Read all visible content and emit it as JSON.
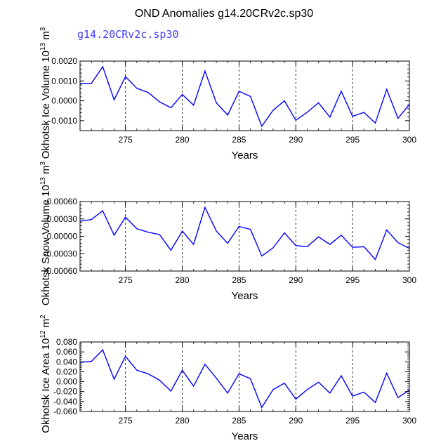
{
  "title": "OND Anomalies g14.20CRv2c.sp30",
  "subtitle": "g14.20CRv2c.sp30",
  "chart_data": [
    {
      "type": "line",
      "xlabel": "Years",
      "ylabel": "Okhotsk Ice Volume 10",
      "ylabel_exp": "13",
      "ylabel_unit": "m",
      "ylabel_unit_exp": "3",
      "xlim": [
        271,
        300
      ],
      "ylim": [
        -0.0015,
        0.002
      ],
      "xticks": [
        275,
        280,
        285,
        290,
        295,
        300
      ],
      "xtick_labels": [
        "275",
        "280",
        "285",
        "290",
        "295",
        "300"
      ],
      "yticks": [
        -0.001,
        0.0,
        0.001,
        0.002
      ],
      "ytick_labels": [
        "-0.0010",
        "0.0000",
        "0.0010",
        "0.0020"
      ],
      "grid": "vertical dashed at x ticks",
      "color": "#0000ff",
      "x": [
        271,
        272,
        273,
        274,
        275,
        276,
        277,
        278,
        279,
        280,
        281,
        282,
        283,
        284,
        285,
        286,
        287,
        288,
        289,
        290,
        291,
        292,
        293,
        294,
        295,
        296,
        297,
        298,
        299,
        300
      ],
      "y": [
        0.00088,
        0.00088,
        0.00172,
        5e-05,
        0.00122,
        0.00063,
        0.00042,
        -5e-05,
        -0.00035,
        0.00032,
        -0.00022,
        0.0015,
        -0.0001,
        -0.00072,
        0.00048,
        0.00022,
        -0.00128,
        -0.00048,
        0.0,
        -0.00098,
        -0.00058,
        -0.0001,
        -0.00082,
        0.00048,
        -0.00078,
        -0.00058,
        -0.00112,
        0.00058,
        -0.00088,
        -0.00018
      ]
    },
    {
      "type": "line",
      "xlabel": "Years",
      "ylabel": "Okhotsk Snow Volume 10",
      "ylabel_exp": "13",
      "ylabel_unit": "m",
      "ylabel_unit_exp": "3",
      "xlim": [
        271,
        300
      ],
      "ylim": [
        -0.0006,
        0.0006
      ],
      "xticks": [
        275,
        280,
        285,
        290,
        295,
        300
      ],
      "xtick_labels": [
        "275",
        "280",
        "285",
        "290",
        "295",
        "300"
      ],
      "yticks": [
        -0.0006,
        -0.0003,
        0.0,
        0.0003,
        0.0006
      ],
      "ytick_labels": [
        "-0.00060",
        "-0.00030",
        "0.00000",
        "0.00030",
        "0.00060"
      ],
      "grid": "vertical dashed at x ticks",
      "color": "#0000ff",
      "x": [
        271,
        272,
        273,
        274,
        275,
        276,
        277,
        278,
        279,
        280,
        281,
        282,
        283,
        284,
        285,
        286,
        287,
        288,
        289,
        290,
        291,
        292,
        293,
        294,
        295,
        296,
        297,
        298,
        299,
        300
      ],
      "y": [
        0.00026,
        0.00029,
        0.00044,
        2e-05,
        0.00033,
        0.00013,
        7e-05,
        3e-05,
        -0.00024,
        9e-05,
        -0.00014,
        0.0005,
        9e-05,
        -0.00012,
        0.00017,
        0.00012,
        -0.00034,
        -0.0002,
        6e-05,
        -0.00016,
        -0.00018,
        -1e-05,
        -0.00014,
        2e-05,
        -0.00019,
        -0.00018,
        -0.0004,
        0.00011,
        -0.00011,
        -0.00021
      ]
    },
    {
      "type": "line",
      "xlabel": "Years",
      "ylabel": "Okhotsk Ice Area 10",
      "ylabel_exp": "12",
      "ylabel_unit": "m",
      "ylabel_unit_exp": "2",
      "xlim": [
        271,
        300
      ],
      "ylim": [
        -0.06,
        0.08
      ],
      "xticks": [
        275,
        280,
        285,
        290,
        295,
        300
      ],
      "xtick_labels": [
        "275",
        "280",
        "285",
        "290",
        "295",
        "300"
      ],
      "yticks": [
        -0.06,
        -0.04,
        -0.02,
        0.0,
        0.02,
        0.04,
        0.06,
        0.08
      ],
      "ytick_labels": [
        "-0.060",
        "-0.040",
        "-0.020",
        "0.000",
        "0.020",
        "0.040",
        "0.060",
        "0.080"
      ],
      "grid": "vertical dashed at x ticks",
      "color": "#0000ff",
      "x": [
        271,
        272,
        273,
        274,
        275,
        276,
        277,
        278,
        279,
        280,
        281,
        282,
        283,
        284,
        285,
        286,
        287,
        288,
        289,
        290,
        291,
        292,
        293,
        294,
        295,
        296,
        297,
        298,
        299,
        300
      ],
      "y": [
        0.039,
        0.041,
        0.064,
        0.005,
        0.051,
        0.023,
        0.016,
        0.003,
        -0.019,
        0.023,
        -0.009,
        0.035,
        0.007,
        -0.023,
        0.016,
        0.006,
        -0.052,
        -0.016,
        -0.003,
        -0.035,
        -0.016,
        -0.001,
        -0.023,
        0.012,
        -0.029,
        -0.021,
        -0.042,
        0.017,
        -0.032,
        -0.017
      ]
    }
  ]
}
